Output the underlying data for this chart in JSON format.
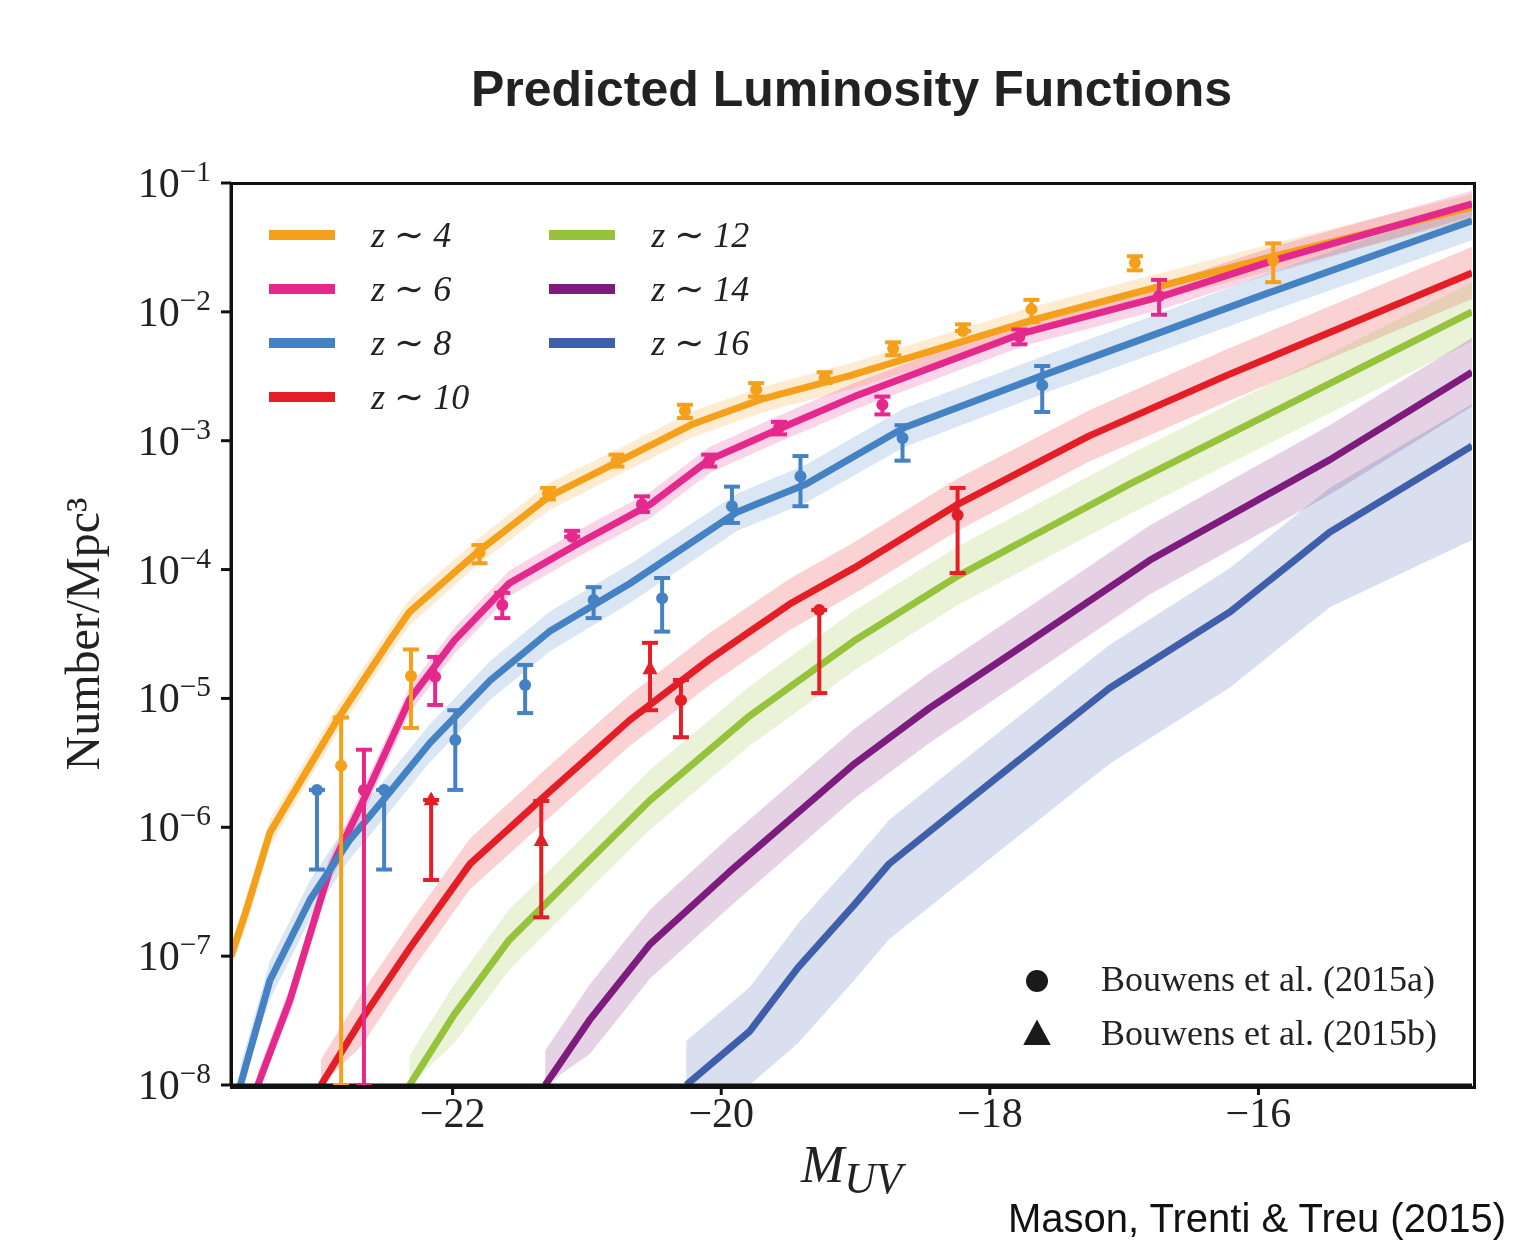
{
  "chart_data": {
    "type": "line",
    "title": "Predicted Luminosity Functions",
    "xlabel": "M$_{UV}$",
    "ylabel": "Number/Mpc³",
    "xlim": [
      -23.65,
      -14.41
    ],
    "xticks": [
      {
        "value": -22,
        "label": "−22"
      },
      {
        "value": -20,
        "label": "−20"
      },
      {
        "value": -18,
        "label": "−18"
      },
      {
        "value": -16,
        "label": "−16"
      }
    ],
    "ylim": [
      1e-08,
      0.1
    ],
    "yticks": [
      {
        "value": 1e-08,
        "label": "10$^{−8}$"
      },
      {
        "value": 1e-07,
        "label": "10$^{−7}$"
      },
      {
        "value": 1e-06,
        "label": "10$^{−6}$"
      },
      {
        "value": 1e-05,
        "label": "10$^{−5}$"
      },
      {
        "value": 0.0001,
        "label": "10$^{−4}$"
      },
      {
        "value": 0.001,
        "label": "10$^{−3}$"
      },
      {
        "value": 0.01,
        "label": "10$^{−2}$"
      },
      {
        "value": 0.1,
        "label": "10$^{−1}$"
      }
    ],
    "log": "y",
    "legend": "top left",
    "annotations": [
      "Bouwens et al. (2015a)",
      "Bouwens et al. (2015b)",
      "Mason, Trenti & Treu (2015)"
    ],
    "series": [
      {
        "name": "z ∼ 4",
        "color": "#f5a01a",
        "x": [
          -23.65,
          -23.54,
          -23.36,
          -22.86,
          -22.47,
          -22.32,
          -21.81,
          -21.28,
          -20.74,
          -20.21,
          -19.7,
          -19.04,
          -17.67,
          -15.89,
          -14.41
        ],
        "values": [
          1e-07,
          2.2e-07,
          9.1e-07,
          6.8e-06,
          2.8e-05,
          4.7e-05,
          0.000138,
          0.00037,
          0.00071,
          0.00135,
          0.0021,
          0.0032,
          0.0087,
          0.027,
          0.065
        ],
        "lower": [
          8e-08,
          1.7e-07,
          7.2e-07,
          5.4e-06,
          2.2e-05,
          3.7e-05,
          0.00011,
          0.00029,
          0.00056,
          0.00107,
          0.00165,
          0.0025,
          0.0069,
          0.021,
          0.052
        ],
        "upper": [
          1.26e-07,
          2.8e-07,
          1.15e-06,
          8.6e-06,
          3.5e-05,
          5.9e-05,
          0.000174,
          0.00047,
          0.00089,
          0.0017,
          0.0026,
          0.004,
          0.011,
          0.034,
          0.082
        ]
      },
      {
        "name": "z ∼ 6",
        "color": "#e5288c",
        "x": [
          -23.45,
          -23.21,
          -22.92,
          -22.65,
          -22.32,
          -21.99,
          -21.58,
          -21.07,
          -20.53,
          -20.09,
          -19.55,
          -19.01,
          -17.76,
          -16.72,
          -15.89,
          -14.41
        ],
        "values": [
          1e-08,
          4.6e-08,
          4.5e-07,
          1.74e-06,
          9.8e-06,
          2.8e-05,
          7.8e-05,
          0.000158,
          0.00032,
          0.00071,
          0.00126,
          0.0022,
          0.0068,
          0.0132,
          0.025,
          0.069
        ],
        "lower": [
          1e-08,
          3.6e-08,
          3.6e-07,
          1.37e-06,
          7.7e-06,
          2.2e-05,
          6.2e-05,
          0.000125,
          0.00025,
          0.00056,
          0.001,
          0.00174,
          0.0054,
          0.0105,
          0.02,
          0.055
        ],
        "upper": [
          1.26e-08,
          5.8e-08,
          5.7e-07,
          2.2e-06,
          1.23e-05,
          3.5e-05,
          9.8e-05,
          0.0002,
          0.0004,
          0.00089,
          0.0016,
          0.0028,
          0.0086,
          0.0166,
          0.032,
          0.087
        ]
      },
      {
        "name": "z ∼ 8",
        "color": "#4482c3",
        "x": [
          -23.58,
          -23.36,
          -23.06,
          -22.77,
          -22.47,
          -22.17,
          -21.72,
          -21.28,
          -20.68,
          -19.88,
          -19.37,
          -18.64,
          -17.61,
          -15.92,
          -14.41
        ],
        "values": [
          1e-08,
          6.5e-08,
          2.75e-07,
          7.9e-07,
          1.86e-06,
          4.5e-06,
          1.38e-05,
          3.3e-05,
          7.8e-05,
          0.00028,
          0.00046,
          0.00126,
          0.0032,
          0.0141,
          0.051
        ],
        "lower": [
          1e-08,
          4.6e-08,
          1.95e-07,
          5.6e-07,
          1.32e-06,
          3.2e-06,
          9.8e-06,
          2.3e-05,
          5.5e-05,
          0.0002,
          0.00033,
          0.00089,
          0.0023,
          0.01,
          0.036
        ],
        "upper": [
          1.41e-08,
          9.2e-08,
          3.9e-07,
          1.11e-06,
          2.6e-06,
          6.3e-06,
          1.95e-05,
          4.7e-05,
          0.00011,
          0.00039,
          0.00065,
          0.00178,
          0.0045,
          0.02,
          0.072
        ]
      },
      {
        "name": "z ∼ 10",
        "color": "#e41e26",
        "x": [
          -22.98,
          -22.68,
          -22.32,
          -21.87,
          -21.28,
          -20.68,
          -20.09,
          -19.49,
          -19.01,
          -18.24,
          -17.26,
          -16.24,
          -14.41
        ],
        "values": [
          1e-08,
          3.2e-08,
          1.15e-07,
          5.2e-07,
          1.88e-06,
          6.8e-06,
          2e-05,
          5.4e-05,
          0.000103,
          0.00032,
          0.00109,
          0.0032,
          0.02
        ],
        "lower": [
          1e-08,
          2e-08,
          7.3e-08,
          3.3e-07,
          1.19e-06,
          4.3e-06,
          1.26e-05,
          3.4e-05,
          6.5e-05,
          0.0002,
          0.00069,
          0.002,
          0.0126
        ],
        "upper": [
          1.58e-08,
          5.1e-08,
          1.82e-07,
          8.2e-07,
          3e-06,
          1.07e-05,
          3.2e-05,
          8.5e-05,
          0.000163,
          0.00051,
          0.00172,
          0.0051,
          0.032
        ]
      },
      {
        "name": "z ∼ 12",
        "color": "#96c23c",
        "x": [
          -22.32,
          -21.99,
          -21.58,
          -21.13,
          -20.53,
          -19.79,
          -19.01,
          -18.24,
          -16.96,
          -15.77,
          -14.41
        ],
        "values": [
          1e-08,
          3.5e-08,
          1.33e-07,
          3.9e-07,
          1.62e-06,
          7.3e-06,
          2.8e-05,
          8.9e-05,
          0.00046,
          0.00193,
          0.01
        ],
        "lower": [
          1e-08,
          2.1e-08,
          7.8e-08,
          2.3e-07,
          9.6e-07,
          4.3e-06,
          1.65e-05,
          5.3e-05,
          0.00027,
          0.00114,
          0.0059
        ],
        "upper": [
          1.7e-08,
          6e-08,
          2.3e-07,
          6.6e-07,
          2.8e-06,
          1.24e-05,
          4.8e-05,
          0.000151,
          0.00078,
          0.0033,
          0.017
        ]
      },
      {
        "name": "z ∼ 14",
        "color": "#7d1c7d",
        "x": [
          -21.31,
          -20.98,
          -20.53,
          -19.94,
          -19.01,
          -18.45,
          -17.7,
          -16.81,
          -15.47,
          -14.41
        ],
        "values": [
          1e-08,
          3.2e-08,
          1.24e-07,
          4.5e-07,
          3.1e-06,
          8.4e-06,
          2.8e-05,
          0.000118,
          0.00071,
          0.0034
        ],
        "lower": [
          1e-08,
          1.73e-08,
          6.7e-08,
          2.4e-07,
          1.67e-06,
          4.5e-06,
          1.51e-05,
          6.4e-05,
          0.00038,
          0.00184
        ],
        "upper": [
          1.86e-08,
          6e-08,
          2.3e-07,
          8.4e-07,
          5.8e-06,
          1.56e-05,
          5.2e-05,
          0.00022,
          0.00132,
          0.0063
        ]
      },
      {
        "name": "z ∼ 16",
        "color": "#3f5fab",
        "x": [
          -20.26,
          -19.79,
          -19.43,
          -19.01,
          -18.75,
          -18.0,
          -17.11,
          -16.21,
          -15.47,
          -14.41
        ],
        "values": [
          1e-08,
          2.6e-08,
          8.1e-08,
          2.5e-07,
          5.2e-07,
          2.2e-06,
          1.2e-05,
          4.7e-05,
          0.000195,
          0.00091
        ],
        "lower": [
          1e-08,
          1e-08,
          2.1e-08,
          6.5e-08,
          1.35e-07,
          5.7e-07,
          3.1e-06,
          1.22e-05,
          5.1e-05,
          0.00017
        ],
        "upper": [
          2.2e-08,
          5.7e-08,
          1.78e-07,
          5.5e-07,
          1.14e-06,
          4.8e-06,
          2.6e-05,
          0.000103,
          0.00043,
          0.00193
        ]
      },
      {
        "type": "scatter",
        "marker": "circle",
        "colors": [
          "#f5a01a",
          "#f5a01a",
          "#f5a01a",
          "#f5a01a",
          "#f5a01a",
          "#f5a01a",
          "#f5a01a",
          "#f5a01a",
          "#f5a01a",
          "#f5a01a",
          "#f5a01a",
          "#f5a01a",
          "#f5a01a",
          "#e5288c",
          "#e5288c",
          "#e5288c",
          "#e5288c",
          "#e5288c",
          "#e5288c",
          "#e5288c",
          "#e5288c",
          "#e5288c",
          "#e5288c",
          "#4482c3",
          "#4482c3",
          "#4482c3",
          "#4482c3",
          "#4482c3",
          "#4482c3",
          "#4482c3",
          "#4482c3",
          "#4482c3",
          "#4482c3",
          "#e41e26",
          "#e41e26",
          "#e41e26"
        ],
        "x": [
          -22.83,
          -22.31,
          -21.8,
          -21.29,
          -20.78,
          -20.27,
          -19.74,
          -19.23,
          -18.72,
          -18.2,
          -17.69,
          -16.92,
          -15.89,
          -22.66,
          -22.13,
          -21.63,
          -21.11,
          -20.59,
          -20.09,
          -19.57,
          -18.8,
          -17.78,
          -16.74,
          -23.01,
          -22.51,
          -21.98,
          -21.46,
          -20.95,
          -20.44,
          -19.92,
          -19.41,
          -18.65,
          -17.61,
          -20.3,
          -19.27,
          -18.24
        ],
        "values": [
          3e-06,
          1.49e-05,
          0.000135,
          0.00039,
          0.0007,
          0.0017,
          0.0025,
          0.0031,
          0.0052,
          0.0071,
          0.0105,
          0.024,
          0.025,
          1.95e-06,
          1.47e-05,
          5.3e-05,
          0.00018,
          0.00032,
          0.0007,
          0.00126,
          0.0019,
          0.0064,
          0.0133,
          1.95e-06,
          1.95e-06,
          4.75e-06,
          1.27e-05,
          5.8e-05,
          6e-05,
          0.00031,
          0.00053,
          0.00105,
          0.0027,
          9.7e-06,
          4.85e-05,
          0.000265
        ],
        "errors": [
          [
            1e-08,
            7.1e-06
          ],
          [
            5.9e-06,
            2.4e-05
          ],
          [
            0.000112,
            0.000155
          ],
          [
            0.00035,
            0.00043
          ],
          [
            0.00063,
            0.00078
          ],
          [
            0.0015,
            0.0019
          ],
          [
            0.0022,
            0.0028
          ],
          [
            0.0028,
            0.0034
          ],
          [
            0.0046,
            0.0058
          ],
          [
            0.0071,
            0.008
          ],
          [
            0.0083,
            0.0124
          ],
          [
            0.021,
            0.027
          ],
          [
            0.017,
            0.034
          ],
          [
            1e-08,
            4e-06
          ],
          [
            8.9e-06,
            2.1e-05
          ],
          [
            4.2e-05,
            6.6e-05
          ],
          [
            0.00018,
            0.0002
          ],
          [
            0.00028,
            0.00037
          ],
          [
            0.00063,
            0.00078
          ],
          [
            0.00112,
            0.0014
          ],
          [
            0.0016,
            0.0022
          ],
          [
            0.0056,
            0.0073
          ],
          [
            0.0095,
            0.0177
          ],
          [
            4.7e-07,
            1.95e-06
          ],
          [
            4.7e-07,
            1.95e-06
          ],
          [
            1.95e-06,
            8.1e-06
          ],
          [
            7.7e-06,
            1.82e-05
          ],
          [
            4.2e-05,
            7.3e-05
          ],
          [
            3.3e-05,
            8.6e-05
          ],
          [
            0.00023,
            0.00044
          ],
          [
            0.00031,
            0.00076
          ],
          [
            0.0007,
            0.00132
          ],
          [
            0.00167,
            0.0038
          ],
          [
            5e-06,
            1.39e-05
          ],
          [
            1.1e-05,
            4.85e-05
          ],
          [
            9.4e-05,
            0.00043
          ]
        ]
      },
      {
        "type": "scatter",
        "marker": "triangle",
        "colors": [
          "#e41e26",
          "#e41e26",
          "#e41e26"
        ],
        "x": [
          -22.16,
          -21.34,
          -20.53
        ],
        "values": [
          1.63e-06,
          7.9e-07,
          1.7e-05
        ],
        "errors": [
          [
            3.9e-07,
            1.63e-06
          ],
          [
            2e-07,
            1.6e-06
          ],
          [
            8.1e-06,
            2.7e-05
          ]
        ]
      }
    ]
  }
}
